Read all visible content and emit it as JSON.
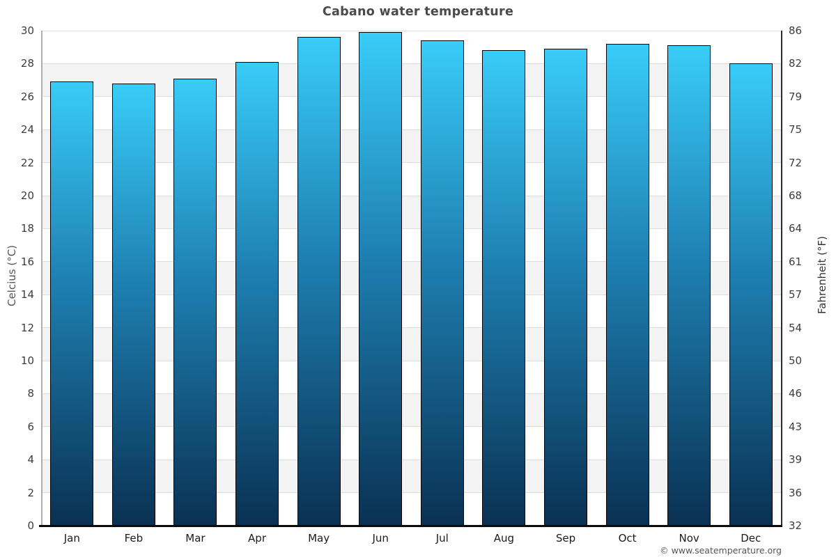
{
  "chart_data": {
    "type": "bar",
    "title": "Cabano water temperature",
    "categories": [
      "Jan",
      "Feb",
      "Mar",
      "Apr",
      "May",
      "Jun",
      "Jul",
      "Aug",
      "Sep",
      "Oct",
      "Nov",
      "Dec"
    ],
    "values": [
      26.9,
      26.8,
      27.1,
      28.1,
      29.6,
      29.9,
      29.4,
      28.8,
      28.9,
      29.2,
      29.1,
      28.0
    ],
    "ylabel": "Celcius (°C)",
    "ylabel_right": "Fahrenheit (°F)",
    "ylim": [
      0,
      30
    ],
    "yticks_celsius": [
      0,
      2,
      4,
      6,
      8,
      10,
      12,
      14,
      16,
      18,
      20,
      22,
      24,
      26,
      28,
      30
    ],
    "yticks_fahrenheit": [
      32,
      36,
      39,
      43,
      46,
      50,
      54,
      57,
      61,
      64,
      68,
      72,
      75,
      79,
      82,
      86
    ],
    "grid": "banded-horizontal",
    "legend": "none",
    "watermark": "© www.seatemperature.org",
    "colors": {
      "bar_top": "#39ccf8",
      "bar_mid": "#1e80b2",
      "bar_bottom": "#0a3153",
      "bar_border": "#000000",
      "band_gray": "#f3f3f3",
      "band_white": "#ffffff",
      "gridline": "#dddddd",
      "title_text": "#4a4a4a",
      "tick_text": "#3c3c3c",
      "axis_title_text": "#555555",
      "watermark_text": "#555555"
    }
  }
}
